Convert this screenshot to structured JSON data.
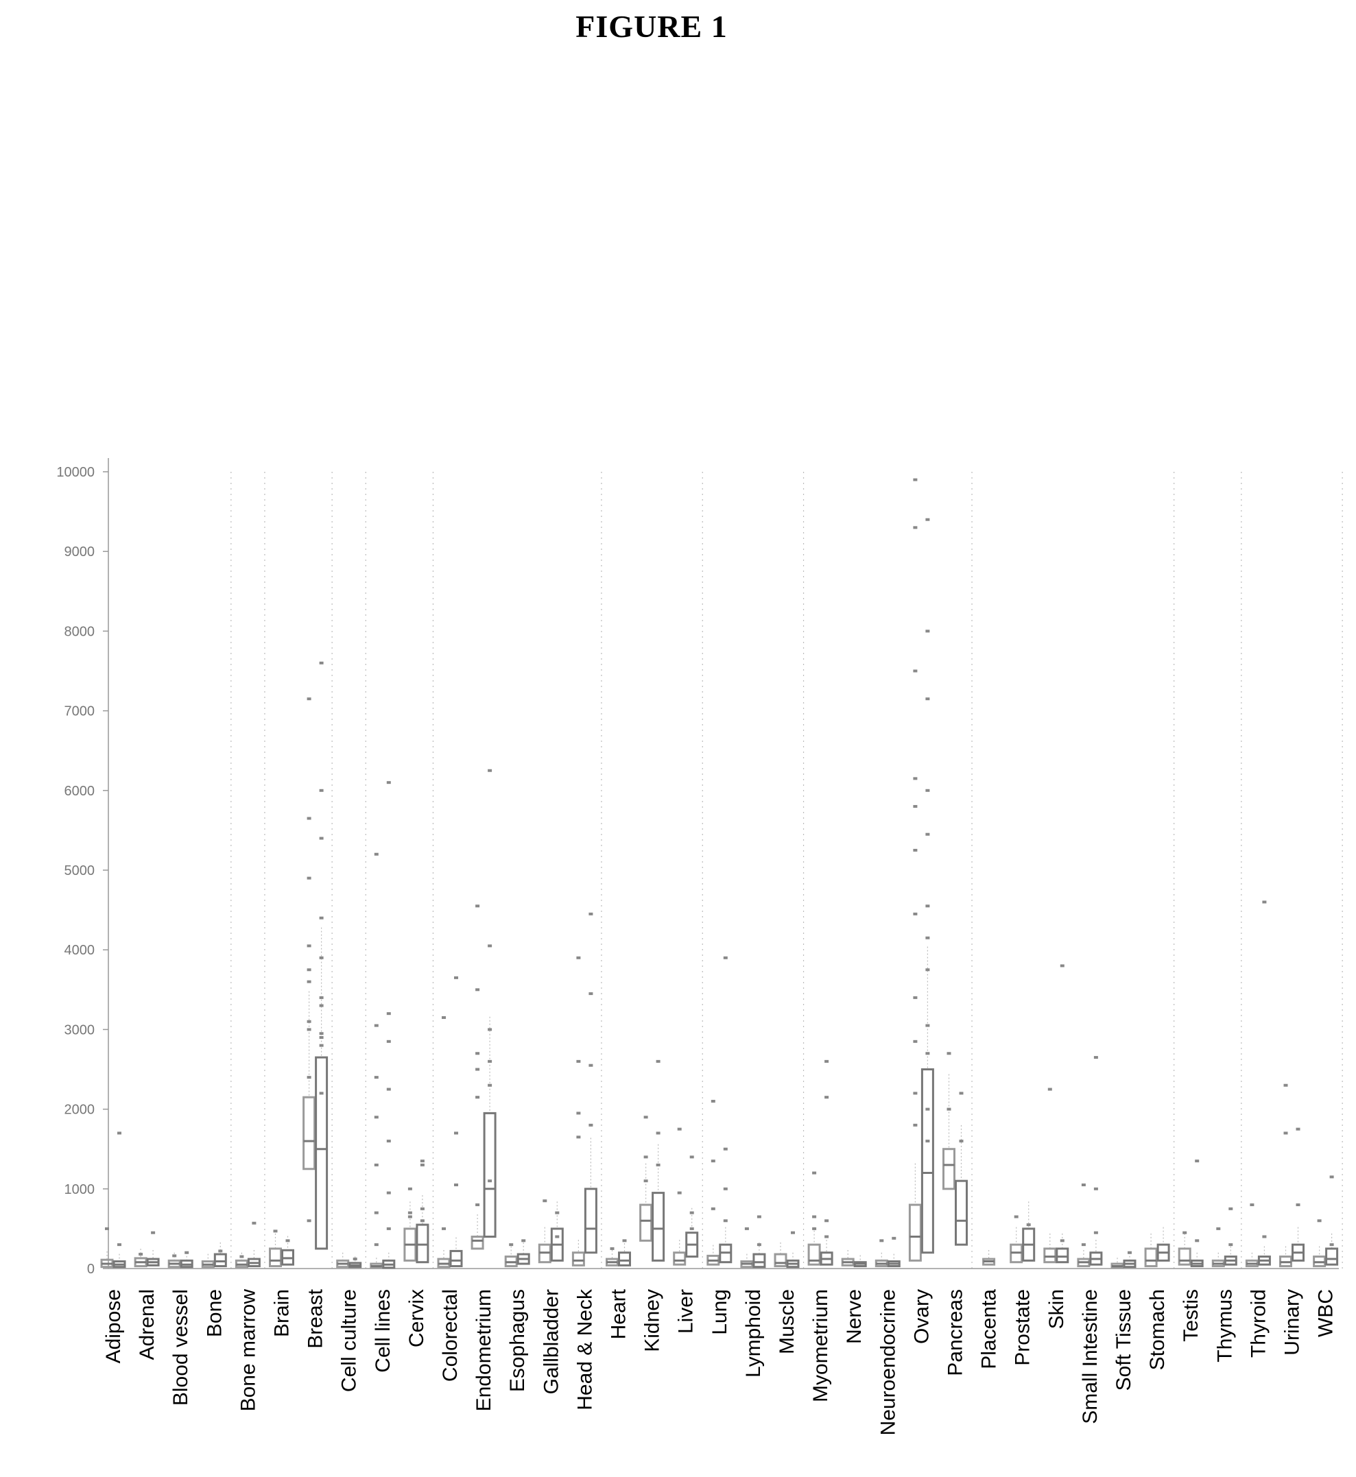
{
  "figure_title": "FIGURE 1",
  "chart_data": {
    "type": "box",
    "title": "",
    "xlabel": "",
    "ylabel": "",
    "ylim": [
      0,
      10000
    ],
    "yticks": [
      0,
      1000,
      2000,
      3000,
      4000,
      5000,
      6000,
      7000,
      8000,
      9000,
      10000
    ],
    "grid": "vertical dotted separators between some groups",
    "colors": {
      "box": "#9a9a9a",
      "box_dark": "#777777",
      "outlier": "#888888",
      "axis": "#999999",
      "separator": "#bbbbbb"
    },
    "categories": [
      "Adipose",
      "Adrenal",
      "Blood vessel",
      "Bone",
      "Bone marrow",
      "Brain",
      "Breast",
      "Cell culture",
      "Cell lines",
      "Cervix",
      "Colorectal",
      "Endometrium",
      "Esophagus",
      "Gallbladder",
      "Head & Neck",
      "Heart",
      "Kidney",
      "Liver",
      "Lung",
      "Lymphoid",
      "Muscle",
      "Myometrium",
      "Nerve",
      "Neuroendocrine",
      "Ovary",
      "Pancreas",
      "Placenta",
      "Prostate",
      "Skin",
      "Small Intestine",
      "Soft Tissue",
      "Stomach",
      "Testis",
      "Thymus",
      "Thyroid",
      "Urinary",
      "WBC"
    ],
    "groups": [
      {
        "boxes": [
          [
            20,
            60,
            110
          ],
          [
            20,
            50,
            90
          ]
        ],
        "outliers": [
          1700,
          500,
          300
        ]
      },
      {
        "boxes": [
          [
            30,
            80,
            130
          ],
          [
            40,
            80,
            120
          ]
        ],
        "outliers": [
          450,
          180
        ]
      },
      {
        "boxes": [
          [
            20,
            60,
            100
          ],
          [
            20,
            50,
            100
          ]
        ],
        "outliers": [
          200,
          160
        ]
      },
      {
        "boxes": [
          [
            20,
            50,
            90
          ],
          [
            30,
            90,
            180
          ]
        ],
        "outliers": [
          220
        ]
      },
      {
        "boxes": [
          [
            20,
            50,
            100
          ],
          [
            30,
            70,
            120
          ]
        ],
        "outliers": [
          570,
          150
        ]
      },
      {
        "boxes": [
          [
            30,
            100,
            250
          ],
          [
            50,
            130,
            230
          ]
        ],
        "outliers": [
          350,
          470
        ]
      },
      {
        "boxes": [
          [
            1250,
            1600,
            2150
          ],
          [
            250,
            1500,
            2650
          ]
        ],
        "outliers": [
          2800,
          3600,
          3300,
          3000,
          2900,
          2400,
          2200,
          600,
          7600,
          7150,
          6000,
          5650,
          5400,
          4900,
          4400,
          4050,
          3900,
          3750,
          3400,
          3100,
          2950
        ]
      },
      {
        "boxes": [
          [
            20,
            60,
            100
          ],
          [
            20,
            40,
            70
          ]
        ],
        "outliers": [
          120
        ]
      },
      {
        "boxes": [
          [
            10,
            30,
            60
          ],
          [
            10,
            50,
            100
          ]
        ],
        "outliers": [
          6100,
          5200,
          3200,
          3050,
          2850,
          2400,
          2250,
          1900,
          1600,
          1300,
          950,
          700,
          500,
          300
        ]
      },
      {
        "boxes": [
          [
            100,
            300,
            500
          ],
          [
            80,
            300,
            550
          ]
        ],
        "outliers": [
          1300,
          1000,
          750,
          650,
          1350,
          700,
          600
        ]
      },
      {
        "boxes": [
          [
            20,
            60,
            120
          ],
          [
            30,
            100,
            220
          ]
        ],
        "outliers": [
          1050,
          500,
          3650,
          3150,
          1700
        ]
      },
      {
        "boxes": [
          [
            250,
            350,
            400
          ],
          [
            400,
            1000,
            1950
          ]
        ],
        "outliers": [
          1100,
          800,
          6250,
          4550,
          4050,
          3500,
          3000,
          2700,
          2600,
          2500,
          2300,
          2150
        ]
      },
      {
        "boxes": [
          [
            30,
            80,
            150
          ],
          [
            60,
            120,
            180
          ]
        ],
        "outliers": [
          350,
          300
        ]
      },
      {
        "boxes": [
          [
            80,
            200,
            300
          ],
          [
            100,
            300,
            500
          ]
        ],
        "outliers": [
          400,
          850,
          700
        ]
      },
      {
        "boxes": [
          [
            40,
            100,
            200
          ],
          [
            200,
            500,
            1000
          ]
        ],
        "outliers": [
          4450,
          3900,
          3450,
          2600,
          2550,
          1950,
          1800,
          1650
        ]
      },
      {
        "boxes": [
          [
            40,
            80,
            120
          ],
          [
            40,
            100,
            200
          ]
        ],
        "outliers": [
          350,
          250
        ]
      },
      {
        "boxes": [
          [
            350,
            600,
            800
          ],
          [
            100,
            500,
            950
          ]
        ],
        "outliers": [
          1300,
          1100,
          2600,
          1900,
          1700,
          1400
        ]
      },
      {
        "boxes": [
          [
            50,
            100,
            200
          ],
          [
            150,
            300,
            450
          ]
        ],
        "outliers": [
          500,
          1750,
          1400,
          950,
          700
        ]
      },
      {
        "boxes": [
          [
            50,
            100,
            160
          ],
          [
            80,
            200,
            300
          ]
        ],
        "outliers": [
          3900,
          2100,
          1500,
          1350,
          1000,
          750,
          600
        ]
      },
      {
        "boxes": [
          [
            20,
            60,
            90
          ],
          [
            20,
            80,
            180
          ]
        ],
        "outliers": [
          650,
          500,
          300
        ]
      },
      {
        "boxes": [
          [
            30,
            70,
            180
          ],
          [
            20,
            60,
            100
          ]
        ],
        "outliers": [
          450
        ]
      },
      {
        "boxes": [
          [
            50,
            100,
            300
          ],
          [
            50,
            120,
            200
          ]
        ],
        "outliers": [
          2150,
          1200,
          600,
          500,
          2600,
          650,
          400
        ]
      },
      {
        "boxes": [
          [
            40,
            80,
            120
          ],
          [
            30,
            60,
            80
          ]
        ],
        "outliers": []
      },
      {
        "boxes": [
          [
            30,
            60,
            100
          ],
          [
            30,
            60,
            90
          ]
        ],
        "outliers": [
          380,
          350
        ]
      },
      {
        "boxes": [
          [
            100,
            400,
            800
          ],
          [
            200,
            1200,
            2500
          ]
        ],
        "outliers": [
          3750,
          2200,
          2000,
          1800,
          1600,
          9900,
          9400,
          9300,
          8000,
          7500,
          7150,
          6150,
          6000,
          5800,
          5450,
          5250,
          4550,
          4450,
          4150,
          3400,
          3050,
          2850,
          2700
        ]
      },
      {
        "boxes": [
          [
            1000,
            1300,
            1500
          ],
          [
            300,
            600,
            1100
          ]
        ],
        "outliers": [
          2200,
          2000,
          1600,
          2700
        ]
      },
      {
        "boxes": [
          [
            50,
            90,
            120
          ]
        ],
        "outliers": []
      },
      {
        "boxes": [
          [
            80,
            200,
            300
          ],
          [
            100,
            300,
            500
          ]
        ],
        "outliers": [
          550,
          650
        ]
      },
      {
        "boxes": [
          [
            80,
            150,
            250
          ],
          [
            80,
            150,
            250
          ]
        ],
        "outliers": [
          3800,
          2250,
          350
        ]
      },
      {
        "boxes": [
          [
            30,
            80,
            120
          ],
          [
            50,
            120,
            200
          ]
        ],
        "outliers": [
          450,
          300,
          2650,
          1050,
          1000
        ]
      },
      {
        "boxes": [
          [
            10,
            30,
            60
          ],
          [
            20,
            60,
            100
          ]
        ],
        "outliers": [
          200
        ]
      },
      {
        "boxes": [
          [
            30,
            100,
            250
          ],
          [
            100,
            200,
            300
          ]
        ],
        "outliers": []
      },
      {
        "boxes": [
          [
            50,
            100,
            250
          ],
          [
            30,
            60,
            100
          ]
        ],
        "outliers": [
          1350,
          450,
          350
        ]
      },
      {
        "boxes": [
          [
            30,
            60,
            100
          ],
          [
            50,
            100,
            150
          ]
        ],
        "outliers": [
          750,
          500,
          300
        ]
      },
      {
        "boxes": [
          [
            30,
            60,
            100
          ],
          [
            50,
            100,
            150
          ]
        ],
        "outliers": [
          4600,
          800,
          400
        ]
      },
      {
        "boxes": [
          [
            30,
            80,
            150
          ],
          [
            100,
            200,
            300
          ]
        ],
        "outliers": [
          800,
          2300,
          1750,
          1700
        ]
      },
      {
        "boxes": [
          [
            30,
            80,
            150
          ],
          [
            50,
            120,
            250
          ]
        ],
        "outliers": [
          1150,
          600,
          300
        ]
      }
    ],
    "separators_after": [
      3,
      4,
      6,
      7,
      9,
      14,
      17,
      20,
      25,
      31,
      33,
      36
    ]
  }
}
